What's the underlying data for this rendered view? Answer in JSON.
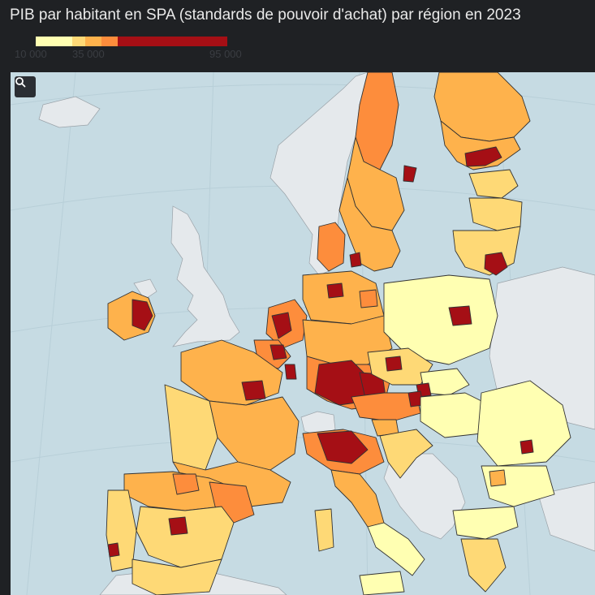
{
  "header": {
    "title": "PIB par habitant en SPA (standards de pouvoir d'achat) par région en 2023"
  },
  "legend": {
    "stops": [
      {
        "value": 10000,
        "color": "#ffffb2"
      },
      {
        "value": 20000,
        "color": "#fed976"
      },
      {
        "value": 27500,
        "color": "#feb24c"
      },
      {
        "value": 35000,
        "color": "#fd8d3c"
      },
      {
        "value": 95000,
        "color": "#a50f15"
      }
    ],
    "tick_labels": [
      "10 000",
      "35 000",
      "95 000"
    ]
  },
  "map": {
    "colors": {
      "sea": "#c6dbe3",
      "non_eu": "#e5e9ec",
      "border": "#333333",
      "c1": "#ffffb2",
      "c2": "#fed976",
      "c3": "#feb24c",
      "c4": "#fd8d3c",
      "c5": "#a50f15"
    },
    "search_icon": "search-icon"
  }
}
